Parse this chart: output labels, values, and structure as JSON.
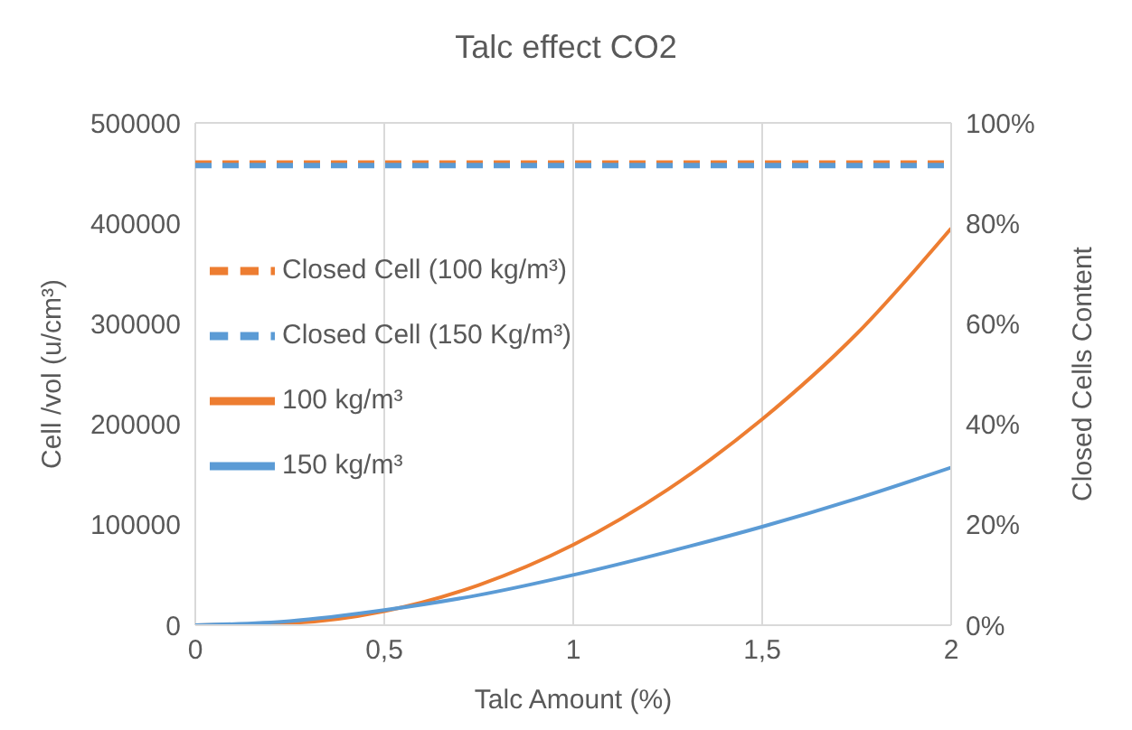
{
  "chart_data": {
    "type": "line",
    "title": "Talc effect CO2",
    "xlabel": "Talc Amount (%)",
    "ylabel": "Cell /vol (u/cm³)",
    "y2label": "Closed Cells Content",
    "x": [
      0,
      0.25,
      0.5,
      0.75,
      1,
      1.25,
      1.5,
      1.75,
      2
    ],
    "series": [
      {
        "name": "Closed Cell (100 kg/m³)",
        "color": "#ed7d31",
        "axis": "y2",
        "line_style": "dashed",
        "values": [
          92,
          92,
          92,
          92,
          92,
          92,
          92,
          92,
          92
        ]
      },
      {
        "name": "Closed Cell (150 Kg/m³)",
        "color": "#5b9bd5",
        "axis": "y2",
        "line_style": "dashed",
        "values": [
          91.5,
          91.5,
          91.5,
          91.5,
          91.5,
          91.5,
          91.5,
          91.5,
          91.5
        ]
      },
      {
        "name": "100 kg/m³",
        "color": "#ed7d31",
        "line_style": "solid",
        "values": [
          0,
          2000,
          14000,
          40000,
          80000,
          135000,
          205000,
          290000,
          395000
        ]
      },
      {
        "name": "150 kg/m³",
        "color": "#5b9bd5",
        "line_style": "solid",
        "values": [
          0,
          4000,
          15000,
          30000,
          50000,
          73000,
          98000,
          126000,
          157000
        ]
      }
    ],
    "xlim": [
      0,
      2
    ],
    "xticks": [
      0,
      {
        "value": 0.5,
        "label": "0,5"
      },
      1,
      {
        "value": 1.5,
        "label": "1,5"
      },
      2
    ],
    "ylim": [
      0,
      500000
    ],
    "yticks": [
      0,
      100000,
      200000,
      300000,
      400000,
      500000
    ],
    "y2lim": [
      0,
      100
    ],
    "y2ticks": [
      {
        "value": 0,
        "label": "0%"
      },
      {
        "value": 20,
        "label": "20%"
      },
      {
        "value": 40,
        "label": "40%"
      },
      {
        "value": 60,
        "label": "60%"
      },
      {
        "value": 80,
        "label": "80%"
      },
      {
        "value": 100,
        "label": "100%"
      }
    ],
    "grid": true,
    "legend": "left",
    "marker": "none"
  }
}
